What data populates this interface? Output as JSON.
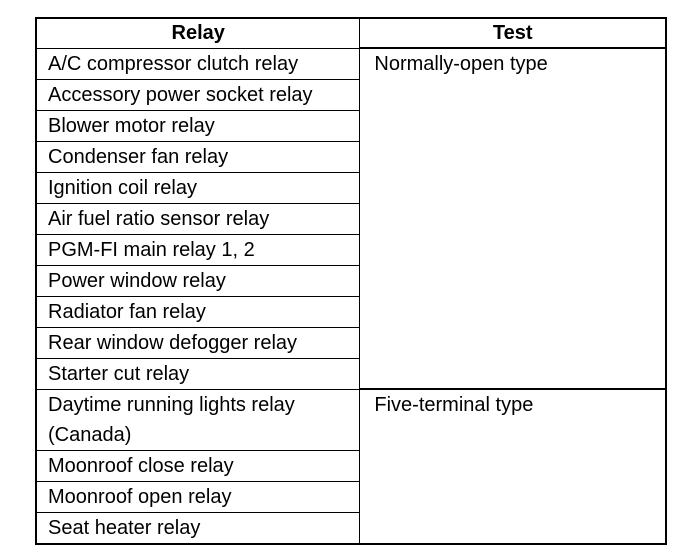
{
  "table": {
    "headers": [
      "Relay",
      "Test"
    ],
    "groups": [
      {
        "test": "Normally-open type",
        "relays": [
          "A/C compressor clutch relay",
          "Accessory power socket relay",
          "Blower motor relay",
          "Condenser fan relay",
          "Ignition coil relay",
          "Air fuel ratio sensor relay",
          "PGM-FI main relay 1, 2",
          "Power window relay",
          "Radiator fan relay",
          "Rear window defogger relay",
          "Starter cut relay"
        ]
      },
      {
        "test": "Five-terminal type",
        "relays": [
          "Daytime running lights relay (Canada)",
          "Moonroof close relay",
          "Moonroof open relay",
          "Seat heater relay"
        ]
      }
    ]
  }
}
